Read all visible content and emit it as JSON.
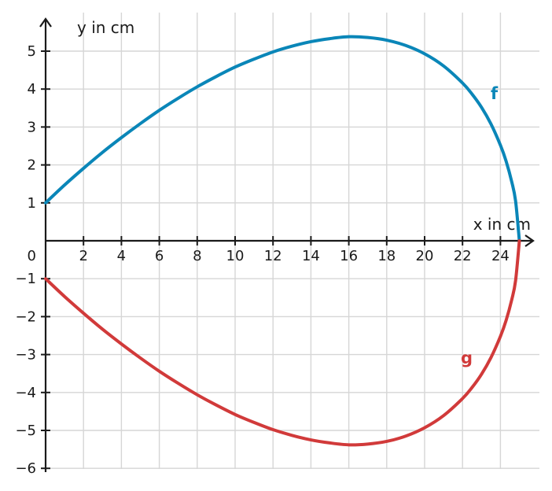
{
  "chart_data": {
    "type": "line",
    "xlabel": "x in cm",
    "ylabel": "y in cm",
    "xlim": [
      0,
      26
    ],
    "ylim": [
      -6,
      5.8
    ],
    "xticks": [
      2,
      4,
      6,
      8,
      10,
      12,
      14,
      16,
      18,
      20,
      22,
      24
    ],
    "yticks": [
      -6,
      -5,
      -4,
      -3,
      -2,
      -1,
      1,
      2,
      3,
      4,
      5
    ],
    "origin_label": "0",
    "grid": true,
    "series": [
      {
        "name": "f",
        "color": "#0a86b8",
        "x": [
          0,
          1,
          2,
          3,
          4,
          5,
          6,
          7,
          8,
          9,
          10,
          11,
          12,
          13,
          14,
          15,
          16,
          17,
          18,
          19,
          20,
          21,
          22,
          22.5,
          23,
          23.5,
          24,
          24.3,
          24.6,
          24.8,
          25
        ],
        "y": [
          1,
          1.47,
          1.91,
          2.33,
          2.72,
          3.09,
          3.44,
          3.76,
          4.06,
          4.33,
          4.58,
          4.79,
          4.98,
          5.13,
          5.25,
          5.33,
          5.38,
          5.36,
          5.29,
          5.15,
          4.93,
          4.61,
          4.16,
          3.87,
          3.52,
          3.08,
          2.52,
          2.1,
          1.55,
          1.05,
          0
        ]
      },
      {
        "name": "g",
        "color": "#d13a3a",
        "x": [
          0,
          1,
          2,
          3,
          4,
          5,
          6,
          7,
          8,
          9,
          10,
          11,
          12,
          13,
          14,
          15,
          16,
          17,
          18,
          19,
          20,
          21,
          22,
          22.5,
          23,
          23.5,
          24,
          24.3,
          24.6,
          24.8,
          25
        ],
        "y": [
          -1,
          -1.47,
          -1.91,
          -2.33,
          -2.72,
          -3.09,
          -3.44,
          -3.76,
          -4.06,
          -4.33,
          -4.58,
          -4.79,
          -4.98,
          -5.13,
          -5.25,
          -5.33,
          -5.38,
          -5.36,
          -5.29,
          -5.15,
          -4.93,
          -4.61,
          -4.16,
          -3.87,
          -3.52,
          -3.08,
          -2.52,
          -2.1,
          -1.55,
          -1.05,
          0
        ]
      }
    ]
  }
}
